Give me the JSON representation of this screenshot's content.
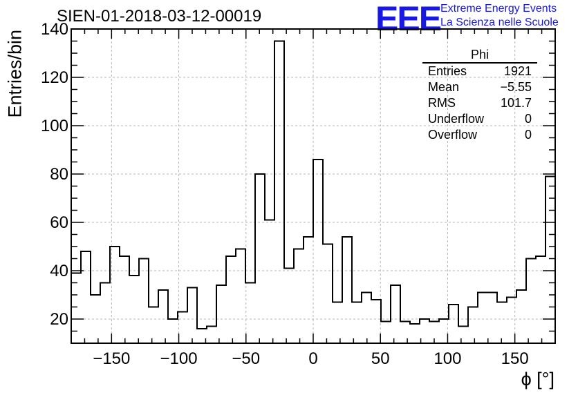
{
  "chart_data": {
    "type": "histogram",
    "title": "SIEN-01-2018-03-12-00019",
    "xlabel": "ϕ [°]",
    "ylabel": "Entries/bin",
    "xlim": [
      -180,
      180
    ],
    "ylim": [
      10,
      140
    ],
    "bin_width": 7.2,
    "xticks": [
      -150,
      -100,
      -50,
      0,
      50,
      100,
      150
    ],
    "yticks": [
      20,
      40,
      60,
      80,
      100,
      120,
      140
    ],
    "grid": true,
    "values": [
      39,
      48,
      30,
      35,
      50,
      46,
      38,
      45,
      25,
      32,
      20,
      23,
      33,
      16,
      17,
      34,
      46,
      49,
      35,
      80,
      61,
      135,
      41,
      49,
      54,
      86,
      51,
      27,
      54,
      27,
      31,
      28,
      19,
      34,
      19,
      18,
      20,
      19,
      20,
      26,
      17,
      25,
      31,
      31,
      27,
      29,
      32,
      45,
      46,
      79
    ],
    "stats": {
      "name": "Phi",
      "rows": [
        {
          "label": "Entries",
          "value": "1921"
        },
        {
          "label": "Mean",
          "value": "−5.55"
        },
        {
          "label": "RMS",
          "value": "101.7"
        },
        {
          "label": "Underflow",
          "value": "0"
        },
        {
          "label": "Overflow",
          "value": "0"
        }
      ]
    }
  },
  "logo": {
    "mark": "EEE",
    "line1": "Extreme Energy Events",
    "line2": "La Scienza nelle Scuole"
  }
}
